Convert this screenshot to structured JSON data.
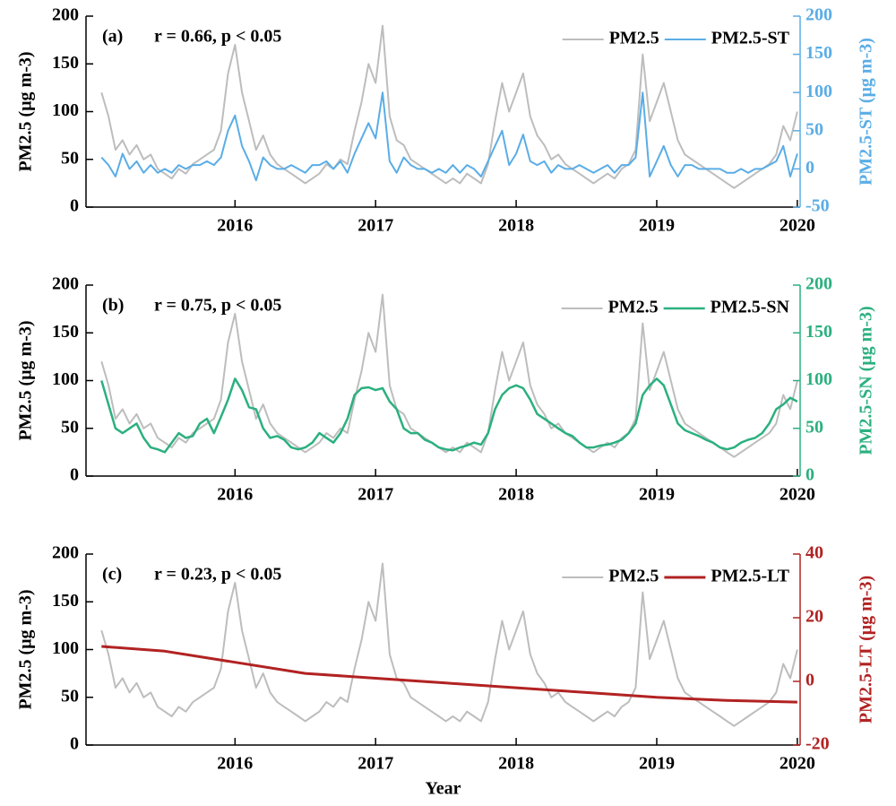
{
  "chart_data": [
    {
      "type": "line",
      "panel_label": "(a)",
      "annotation": "r = 0.66, p < 0.05",
      "y_label": "PM2.5 (μg m-3)",
      "y2_label": "PM2.5-ST (μg m-3)",
      "x": [
        2015.05,
        2015.1,
        2015.15,
        2015.2,
        2015.25,
        2015.3,
        2015.35,
        2015.4,
        2015.45,
        2015.5,
        2015.55,
        2015.6,
        2015.65,
        2015.7,
        2015.75,
        2015.8,
        2015.85,
        2015.9,
        2015.95,
        2016,
        2016.05,
        2016.1,
        2016.15,
        2016.2,
        2016.25,
        2016.3,
        2016.35,
        2016.4,
        2016.45,
        2016.5,
        2016.55,
        2016.6,
        2016.65,
        2016.7,
        2016.75,
        2016.8,
        2016.85,
        2016.9,
        2016.95,
        2017,
        2017.05,
        2017.1,
        2017.15,
        2017.2,
        2017.25,
        2017.3,
        2017.35,
        2017.4,
        2017.45,
        2017.5,
        2017.55,
        2017.6,
        2017.65,
        2017.7,
        2017.75,
        2017.8,
        2017.85,
        2017.9,
        2017.95,
        2018,
        2018.05,
        2018.1,
        2018.15,
        2018.2,
        2018.25,
        2018.3,
        2018.35,
        2018.4,
        2018.45,
        2018.5,
        2018.55,
        2018.6,
        2018.65,
        2018.7,
        2018.75,
        2018.8,
        2018.85,
        2018.9,
        2018.95,
        2019,
        2019.05,
        2019.1,
        2019.15,
        2019.2,
        2019.25,
        2019.3,
        2019.35,
        2019.4,
        2019.45,
        2019.5,
        2019.55,
        2019.6,
        2019.65,
        2019.7,
        2019.75,
        2019.8,
        2019.85,
        2019.9,
        2019.95,
        2020
      ],
      "xlim": [
        2014.94,
        2020.02
      ],
      "xticks": [
        2016,
        2017,
        2018,
        2019,
        2020
      ],
      "ylim": [
        0,
        200
      ],
      "yticks": [
        0,
        50,
        100,
        150,
        200
      ],
      "y2lim": [
        -50,
        200
      ],
      "y2ticks": [
        -50,
        0,
        50,
        100,
        150,
        200
      ],
      "y2color": "#5aade6",
      "series": [
        {
          "name": "PM2.5",
          "color": "#bdbdbd",
          "values": [
            120,
            95,
            60,
            70,
            55,
            65,
            50,
            55,
            40,
            35,
            30,
            40,
            35,
            45,
            50,
            55,
            60,
            80,
            140,
            170,
            120,
            90,
            60,
            75,
            55,
            45,
            40,
            35,
            30,
            25,
            30,
            35,
            45,
            40,
            50,
            45,
            80,
            110,
            150,
            130,
            190,
            95,
            70,
            65,
            50,
            45,
            40,
            35,
            30,
            25,
            30,
            25,
            35,
            30,
            25,
            45,
            90,
            130,
            100,
            120,
            140,
            95,
            75,
            65,
            50,
            55,
            45,
            40,
            35,
            30,
            25,
            30,
            35,
            30,
            40,
            45,
            60,
            160,
            90,
            110,
            130,
            100,
            70,
            55,
            50,
            45,
            40,
            35,
            30,
            25,
            20,
            25,
            30,
            35,
            40,
            45,
            55,
            85,
            70,
            100
          ]
        },
        {
          "name": "PM2.5-ST",
          "color": "#5aade6",
          "axis": "y2",
          "values": [
            15,
            5,
            -10,
            20,
            0,
            10,
            -5,
            5,
            -5,
            0,
            -5,
            5,
            0,
            5,
            5,
            10,
            5,
            15,
            50,
            70,
            30,
            10,
            -15,
            15,
            5,
            0,
            0,
            5,
            0,
            -5,
            5,
            5,
            10,
            0,
            10,
            -5,
            20,
            40,
            60,
            40,
            100,
            10,
            -5,
            15,
            5,
            0,
            0,
            -5,
            0,
            -5,
            5,
            -5,
            5,
            0,
            -10,
            10,
            30,
            50,
            5,
            20,
            45,
            10,
            5,
            10,
            -5,
            5,
            0,
            0,
            5,
            0,
            -5,
            0,
            5,
            -5,
            5,
            5,
            15,
            100,
            -10,
            10,
            30,
            5,
            -10,
            5,
            5,
            0,
            0,
            0,
            0,
            -5,
            -5,
            0,
            -5,
            0,
            0,
            5,
            10,
            30,
            -10,
            20
          ]
        }
      ]
    },
    {
      "type": "line",
      "panel_label": "(b)",
      "annotation": "r = 0.75, p < 0.05",
      "y_label": "PM2.5 (μg m-3)",
      "y2_label": "PM2.5-SN (μg m-3)",
      "x": [
        2015.05,
        2015.1,
        2015.15,
        2015.2,
        2015.25,
        2015.3,
        2015.35,
        2015.4,
        2015.45,
        2015.5,
        2015.55,
        2015.6,
        2015.65,
        2015.7,
        2015.75,
        2015.8,
        2015.85,
        2015.9,
        2015.95,
        2016,
        2016.05,
        2016.1,
        2016.15,
        2016.2,
        2016.25,
        2016.3,
        2016.35,
        2016.4,
        2016.45,
        2016.5,
        2016.55,
        2016.6,
        2016.65,
        2016.7,
        2016.75,
        2016.8,
        2016.85,
        2016.9,
        2016.95,
        2017,
        2017.05,
        2017.1,
        2017.15,
        2017.2,
        2017.25,
        2017.3,
        2017.35,
        2017.4,
        2017.45,
        2017.5,
        2017.55,
        2017.6,
        2017.65,
        2017.7,
        2017.75,
        2017.8,
        2017.85,
        2017.9,
        2017.95,
        2018,
        2018.05,
        2018.1,
        2018.15,
        2018.2,
        2018.25,
        2018.3,
        2018.35,
        2018.4,
        2018.45,
        2018.5,
        2018.55,
        2018.6,
        2018.65,
        2018.7,
        2018.75,
        2018.8,
        2018.85,
        2018.9,
        2018.95,
        2019,
        2019.05,
        2019.1,
        2019.15,
        2019.2,
        2019.25,
        2019.3,
        2019.35,
        2019.4,
        2019.45,
        2019.5,
        2019.55,
        2019.6,
        2019.65,
        2019.7,
        2019.75,
        2019.8,
        2019.85,
        2019.9,
        2019.95,
        2020
      ],
      "xlim": [
        2014.94,
        2020.02
      ],
      "xticks": [
        2016,
        2017,
        2018,
        2019,
        2020
      ],
      "ylim": [
        0,
        200
      ],
      "yticks": [
        0,
        50,
        100,
        150,
        200
      ],
      "y2lim": [
        0,
        200
      ],
      "y2ticks": [
        0,
        50,
        100,
        150,
        200
      ],
      "y2color": "#2bb07f",
      "series": [
        {
          "name": "PM2.5",
          "color": "#bdbdbd",
          "values": [
            120,
            95,
            60,
            70,
            55,
            65,
            50,
            55,
            40,
            35,
            30,
            40,
            35,
            45,
            50,
            55,
            60,
            80,
            140,
            170,
            120,
            90,
            60,
            75,
            55,
            45,
            40,
            35,
            30,
            25,
            30,
            35,
            45,
            40,
            50,
            45,
            80,
            110,
            150,
            130,
            190,
            95,
            70,
            65,
            50,
            45,
            40,
            35,
            30,
            25,
            30,
            25,
            35,
            30,
            25,
            45,
            90,
            130,
            100,
            120,
            140,
            95,
            75,
            65,
            50,
            55,
            45,
            40,
            35,
            30,
            25,
            30,
            35,
            30,
            40,
            45,
            60,
            160,
            90,
            110,
            130,
            100,
            70,
            55,
            50,
            45,
            40,
            35,
            30,
            25,
            20,
            25,
            30,
            35,
            40,
            45,
            55,
            85,
            70,
            100
          ]
        },
        {
          "name": "PM2.5-SN",
          "color": "#2bb07f",
          "axis": "y2",
          "width": 2.5,
          "values": [
            100,
            75,
            50,
            45,
            50,
            55,
            40,
            30,
            28,
            25,
            35,
            45,
            40,
            42,
            55,
            60,
            45,
            62,
            80,
            102,
            90,
            72,
            70,
            50,
            40,
            42,
            38,
            30,
            28,
            30,
            35,
            45,
            40,
            35,
            45,
            60,
            85,
            92,
            93,
            90,
            92,
            78,
            70,
            50,
            45,
            45,
            38,
            35,
            30,
            28,
            27,
            30,
            32,
            35,
            33,
            45,
            70,
            85,
            92,
            95,
            92,
            80,
            65,
            60,
            55,
            50,
            45,
            42,
            35,
            30,
            30,
            32,
            33,
            35,
            38,
            45,
            55,
            85,
            95,
            102,
            95,
            75,
            55,
            48,
            45,
            42,
            38,
            35,
            30,
            28,
            30,
            35,
            38,
            40,
            45,
            55,
            70,
            75,
            82,
            78
          ]
        }
      ]
    },
    {
      "type": "line",
      "panel_label": "(c)",
      "annotation": "r = 0.23, p < 0.05",
      "y_label": "PM2.5 (μg m-3)",
      "y2_label": "PM2.5-LT (μg m-3)",
      "x_label": "Year",
      "x": [
        2015.05,
        2015.1,
        2015.15,
        2015.2,
        2015.25,
        2015.3,
        2015.35,
        2015.4,
        2015.45,
        2015.5,
        2015.55,
        2015.6,
        2015.65,
        2015.7,
        2015.75,
        2015.8,
        2015.85,
        2015.9,
        2015.95,
        2016,
        2016.05,
        2016.1,
        2016.15,
        2016.2,
        2016.25,
        2016.3,
        2016.35,
        2016.4,
        2016.45,
        2016.5,
        2016.55,
        2016.6,
        2016.65,
        2016.7,
        2016.75,
        2016.8,
        2016.85,
        2016.9,
        2016.95,
        2017,
        2017.05,
        2017.1,
        2017.15,
        2017.2,
        2017.25,
        2017.3,
        2017.35,
        2017.4,
        2017.45,
        2017.5,
        2017.55,
        2017.6,
        2017.65,
        2017.7,
        2017.75,
        2017.8,
        2017.85,
        2017.9,
        2017.95,
        2018,
        2018.05,
        2018.1,
        2018.15,
        2018.2,
        2018.25,
        2018.3,
        2018.35,
        2018.4,
        2018.45,
        2018.5,
        2018.55,
        2018.6,
        2018.65,
        2018.7,
        2018.75,
        2018.8,
        2018.85,
        2018.9,
        2018.95,
        2019,
        2019.05,
        2019.1,
        2019.15,
        2019.2,
        2019.25,
        2019.3,
        2019.35,
        2019.4,
        2019.45,
        2019.5,
        2019.55,
        2019.6,
        2019.65,
        2019.7,
        2019.75,
        2019.8,
        2019.85,
        2019.9,
        2019.95,
        2020
      ],
      "xlim": [
        2014.94,
        2020.02
      ],
      "xticks": [
        2016,
        2017,
        2018,
        2019,
        2020
      ],
      "ylim": [
        0,
        200
      ],
      "yticks": [
        0,
        50,
        100,
        150,
        200
      ],
      "y2lim": [
        -20,
        40
      ],
      "y2ticks": [
        -20,
        0,
        20,
        40
      ],
      "y2color": "#b22222",
      "series": [
        {
          "name": "PM2.5",
          "color": "#bdbdbd",
          "values": [
            120,
            95,
            60,
            70,
            55,
            65,
            50,
            55,
            40,
            35,
            30,
            40,
            35,
            45,
            50,
            55,
            60,
            80,
            140,
            170,
            120,
            90,
            60,
            75,
            55,
            45,
            40,
            35,
            30,
            25,
            30,
            35,
            45,
            40,
            50,
            45,
            80,
            110,
            150,
            130,
            190,
            95,
            70,
            65,
            50,
            45,
            40,
            35,
            30,
            25,
            30,
            25,
            35,
            30,
            25,
            45,
            90,
            130,
            100,
            120,
            140,
            95,
            75,
            65,
            50,
            55,
            45,
            40,
            35,
            30,
            25,
            30,
            35,
            30,
            40,
            45,
            60,
            160,
            90,
            110,
            130,
            100,
            70,
            55,
            50,
            45,
            40,
            35,
            30,
            25,
            20,
            25,
            30,
            35,
            40,
            45,
            55,
            85,
            70,
            100
          ]
        },
        {
          "name": "PM2.5-LT",
          "color": "#b22222",
          "axis": "y2",
          "width": 3,
          "x": [
            2015.05,
            2015.5,
            2016,
            2016.5,
            2017,
            2017.5,
            2018,
            2018.5,
            2019,
            2019.5,
            2020
          ],
          "values": [
            11,
            9.5,
            6,
            2.5,
            1,
            -0.5,
            -2,
            -3.5,
            -5,
            -6,
            -6.5
          ]
        }
      ]
    }
  ]
}
